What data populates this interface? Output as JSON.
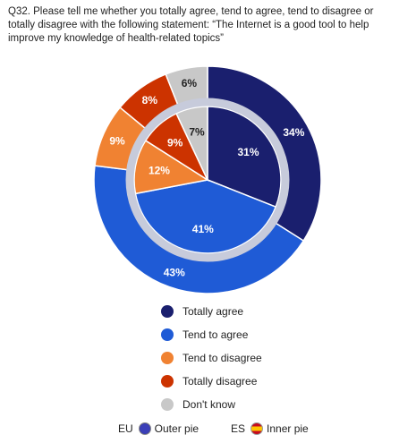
{
  "question": "Q32. Please tell me whether you totally agree, tend to agree, tend to disagree or totally disagree with the following statement: “The Internet is a good tool to help improve my knowledge of health-related topics”",
  "legend": [
    {
      "label": "Totally agree",
      "color": "#1a1f6e"
    },
    {
      "label": "Tend to agree",
      "color": "#1f5bd6"
    },
    {
      "label": "Tend to disagree",
      "color": "#f08232"
    },
    {
      "label": "Totally disagree",
      "color": "#cc3300"
    },
    {
      "label": "Don't know",
      "color": "#c8c8c8"
    }
  ],
  "footer": {
    "eu_code": "EU",
    "eu_text": "Outer pie",
    "es_code": "ES",
    "es_text": "Inner pie"
  },
  "chart_data": {
    "type": "pie",
    "categories": [
      "Totally agree",
      "Tend to agree",
      "Tend to disagree",
      "Totally disagree",
      "Don't know"
    ],
    "series": [
      {
        "name": "Outer pie",
        "values": [
          34,
          43,
          9,
          8,
          6
        ],
        "labels": [
          "34%",
          "43%",
          "9%",
          "8%",
          "6%"
        ]
      },
      {
        "name": "Inner pie",
        "values": [
          31,
          41,
          12,
          9,
          7
        ],
        "labels": [
          "31%",
          "41%",
          "12%",
          "9%",
          "7%"
        ]
      }
    ],
    "colors": [
      "#1a1f6e",
      "#1f5bd6",
      "#f08232",
      "#cc3300",
      "#c8c8c8"
    ]
  }
}
